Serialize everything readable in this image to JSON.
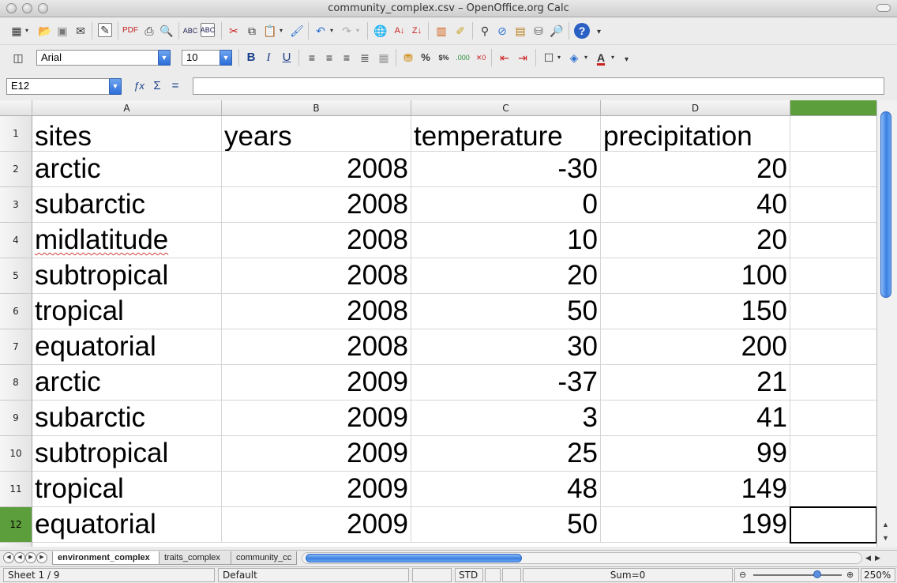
{
  "window": {
    "title": "community_complex.csv – OpenOffice.org Calc"
  },
  "toolbar1": {
    "icons": [
      "new-document-icon",
      "open-icon",
      "save-icon",
      "email-icon",
      "edit-file-icon",
      "export-pdf-icon",
      "print-icon",
      "page-preview-icon",
      "spellcheck-icon",
      "autospellcheck-icon",
      "cut-icon",
      "copy-icon",
      "paste-icon",
      "clone-formatting-icon",
      "undo-icon",
      "redo-icon",
      "hyperlink-icon",
      "sort-ascending-icon",
      "sort-descending-icon",
      "chart-icon",
      "show-draw-functions-icon",
      "find-replace-icon",
      "navigator-icon",
      "gallery-icon",
      "data-sources-icon",
      "zoom-icon",
      "help-icon"
    ]
  },
  "toolbar2": {
    "font_name": "Arial",
    "font_size": "10",
    "bold": "B",
    "italic": "I",
    "underline": "U",
    "percent": "%",
    "currency": "$%"
  },
  "formula_bar": {
    "cell_ref": "E12",
    "sum_symbol": "Σ",
    "equals_symbol": "=",
    "formula": ""
  },
  "grid": {
    "columns": [
      "A",
      "B",
      "C",
      "D",
      ""
    ],
    "rows": [
      {
        "num": "1",
        "cells": [
          "sites",
          "years",
          "temperature",
          "precipitation"
        ]
      },
      {
        "num": "2",
        "cells": [
          "arctic",
          "2008",
          "-30",
          "20"
        ]
      },
      {
        "num": "3",
        "cells": [
          "subarctic",
          "2008",
          "0",
          "40"
        ]
      },
      {
        "num": "4",
        "cells": [
          "midlatitude",
          "2008",
          "10",
          "20"
        ]
      },
      {
        "num": "5",
        "cells": [
          "subtropical",
          "2008",
          "20",
          "100"
        ]
      },
      {
        "num": "6",
        "cells": [
          "tropical",
          "2008",
          "50",
          "150"
        ]
      },
      {
        "num": "7",
        "cells": [
          "equatorial",
          "2008",
          "30",
          "200"
        ]
      },
      {
        "num": "8",
        "cells": [
          "arctic",
          "2009",
          "-37",
          "21"
        ]
      },
      {
        "num": "9",
        "cells": [
          "subarctic",
          "2009",
          "3",
          "41"
        ]
      },
      {
        "num": "10",
        "cells": [
          "subtropical",
          "2009",
          "25",
          "99"
        ]
      },
      {
        "num": "11",
        "cells": [
          "tropical",
          "2009",
          "48",
          "149"
        ]
      },
      {
        "num": "12",
        "cells": [
          "equatorial",
          "2009",
          "50",
          "199"
        ]
      }
    ],
    "selected_row": "12",
    "selected_cell": "E12",
    "selection_color": "#5d9e3c"
  },
  "sheets": {
    "tabs": [
      "environment_complex",
      "traits_complex",
      "community_cc"
    ],
    "active": "environment_complex"
  },
  "status_bar": {
    "sheet": "Sheet 1 / 9",
    "page_style": "Default",
    "mode": "STD",
    "sum": "Sum=0",
    "zoom": "250%"
  }
}
